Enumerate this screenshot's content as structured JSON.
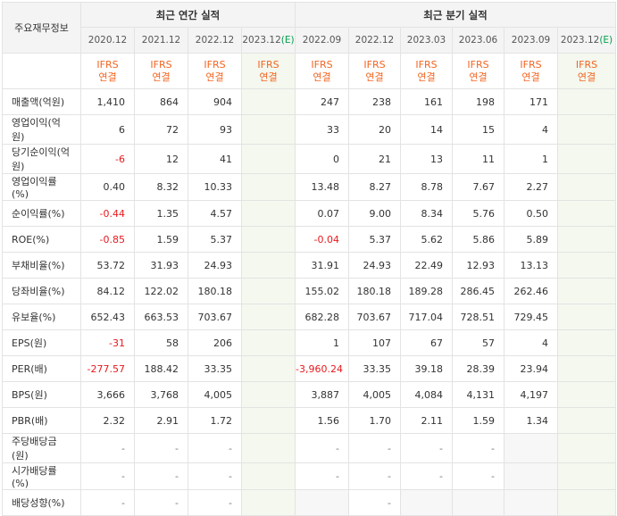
{
  "corner_label": "주요재무정보",
  "groups": {
    "annual": "최근 연간 실적",
    "quarter": "최근 분기 실적"
  },
  "periods": [
    "2020.12",
    "2021.12",
    "2022.12",
    "2023.12(E)",
    "2022.09",
    "2022.12",
    "2023.03",
    "2023.06",
    "2023.09",
    "2023.12(E)"
  ],
  "ifrs": {
    "top": "IFRS",
    "bottom": "연결"
  },
  "rows": [
    {
      "label": "매출액(억원)",
      "values": [
        "1,410",
        "864",
        "904",
        "",
        "247",
        "238",
        "161",
        "198",
        "171",
        ""
      ]
    },
    {
      "label": "영업이익(억원)",
      "values": [
        "6",
        "72",
        "93",
        "",
        "33",
        "20",
        "14",
        "15",
        "4",
        ""
      ]
    },
    {
      "label": "당기순이익(억원)",
      "values": [
        "-6",
        "12",
        "41",
        "",
        "0",
        "21",
        "13",
        "11",
        "1",
        ""
      ]
    },
    {
      "label": "영업이익률(%)",
      "values": [
        "0.40",
        "8.32",
        "10.33",
        "",
        "13.48",
        "8.27",
        "8.78",
        "7.67",
        "2.27",
        ""
      ]
    },
    {
      "label": "순이익률(%)",
      "values": [
        "-0.44",
        "1.35",
        "4.57",
        "",
        "0.07",
        "9.00",
        "8.34",
        "5.76",
        "0.50",
        ""
      ]
    },
    {
      "label": "ROE(%)",
      "values": [
        "-0.85",
        "1.59",
        "5.37",
        "",
        "-0.04",
        "5.37",
        "5.62",
        "5.86",
        "5.89",
        ""
      ]
    },
    {
      "label": "부채비율(%)",
      "values": [
        "53.72",
        "31.93",
        "24.93",
        "",
        "31.91",
        "24.93",
        "22.49",
        "12.93",
        "13.13",
        ""
      ]
    },
    {
      "label": "당좌비율(%)",
      "values": [
        "84.12",
        "122.02",
        "180.18",
        "",
        "155.02",
        "180.18",
        "189.28",
        "286.45",
        "262.46",
        ""
      ]
    },
    {
      "label": "유보율(%)",
      "values": [
        "652.43",
        "663.53",
        "703.67",
        "",
        "682.28",
        "703.67",
        "717.04",
        "728.51",
        "729.45",
        ""
      ]
    },
    {
      "label": "EPS(원)",
      "values": [
        "-31",
        "58",
        "206",
        "",
        "1",
        "107",
        "67",
        "57",
        "4",
        ""
      ]
    },
    {
      "label": "PER(배)",
      "values": [
        "-277.57",
        "188.42",
        "33.35",
        "",
        "-3,960.24",
        "33.35",
        "39.18",
        "28.39",
        "23.94",
        ""
      ]
    },
    {
      "label": "BPS(원)",
      "values": [
        "3,666",
        "3,768",
        "4,005",
        "",
        "3,887",
        "4,005",
        "4,084",
        "4,131",
        "4,197",
        ""
      ]
    },
    {
      "label": "PBR(배)",
      "values": [
        "2.32",
        "2.91",
        "1.72",
        "",
        "1.56",
        "1.70",
        "2.11",
        "1.59",
        "1.34",
        ""
      ]
    },
    {
      "label": "주당배당금(원)",
      "values": [
        "-",
        "-",
        "-",
        "",
        "-",
        "-",
        "-",
        "-",
        "",
        ""
      ]
    },
    {
      "label": "시가배당률(%)",
      "values": [
        "-",
        "-",
        "-",
        "",
        "-",
        "-",
        "-",
        "-",
        "",
        ""
      ]
    },
    {
      "label": "배당성향(%)",
      "values": [
        "-",
        "-",
        "-",
        "",
        "",
        "-",
        "",
        "",
        "",
        ""
      ]
    }
  ]
}
